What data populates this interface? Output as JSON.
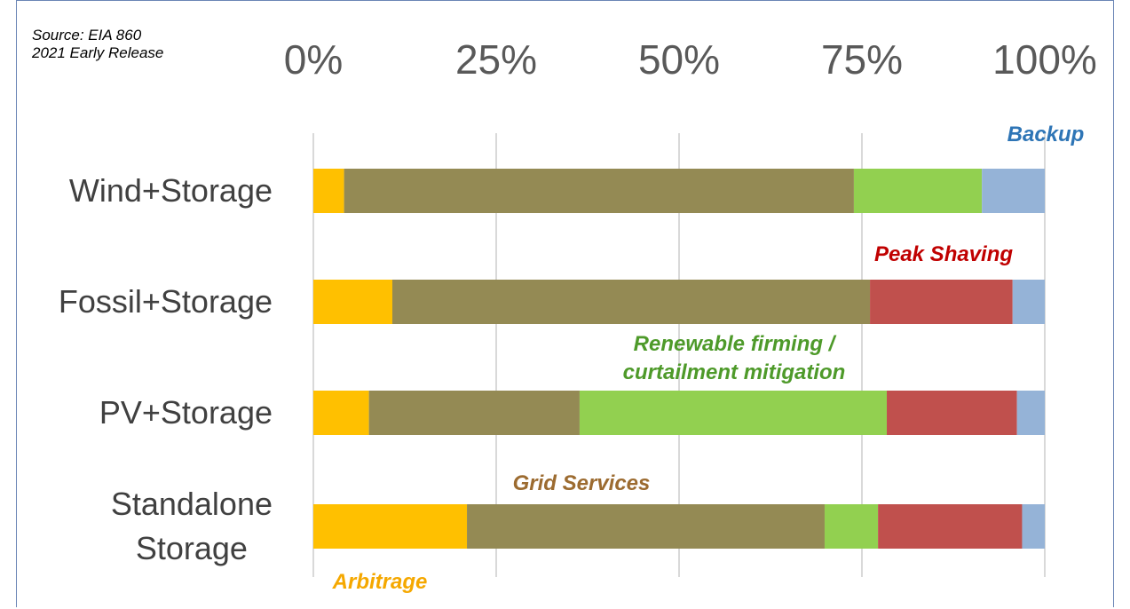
{
  "chart_data": {
    "type": "bar",
    "orientation": "horizontal",
    "stacked": true,
    "source": "Source: EIA 860\n2021 Early Release",
    "categories": [
      "Wind+Storage",
      "Fossil+Storage",
      "PV+Storage",
      "Standalone\nStorage"
    ],
    "series": [
      {
        "name": "Arbitrage",
        "color": "#FFC000",
        "label_color": "#F5A800",
        "values": [
          4.2,
          10.8,
          7.6,
          21.0
        ]
      },
      {
        "name": "Grid Services",
        "color": "#948A54",
        "label_color": "#9C6B30",
        "values": [
          69.7,
          65.3,
          28.8,
          48.9
        ]
      },
      {
        "name": "Renewable firming /\ncurtailment mitigation",
        "color": "#92D050",
        "label_color": "#4E9A2A",
        "values": [
          17.5,
          0,
          42.0,
          7.3
        ]
      },
      {
        "name": "Peak Shaving",
        "color": "#C0504D",
        "label_color": "#C00000",
        "values": [
          0,
          19.5,
          17.8,
          19.7
        ]
      },
      {
        "name": "Backup",
        "color": "#95B3D7",
        "label_color": "#2E75B6",
        "values": [
          8.6,
          4.4,
          3.8,
          3.1
        ]
      }
    ],
    "xlim": [
      0,
      100
    ],
    "xticks": [
      {
        "value": 0,
        "label": "0%"
      },
      {
        "value": 25,
        "label": "25%"
      },
      {
        "value": 50,
        "label": "50%"
      },
      {
        "value": 75,
        "label": "75%"
      },
      {
        "value": 100,
        "label": "100%"
      }
    ],
    "grid": true
  }
}
